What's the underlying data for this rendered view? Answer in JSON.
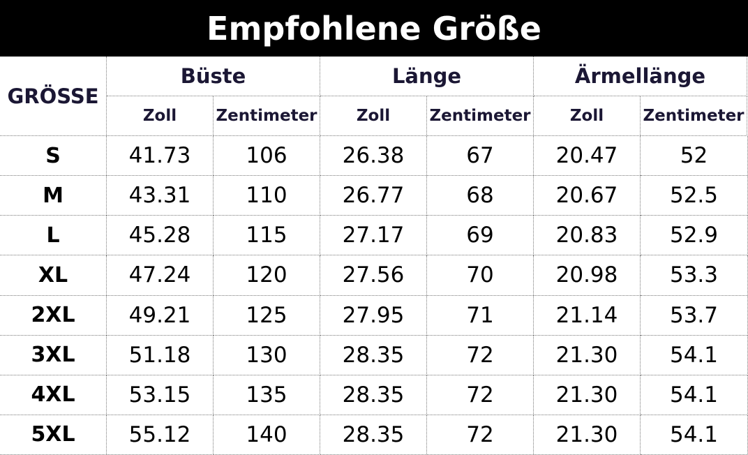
{
  "header": {
    "title": "Empfohlene Größe"
  },
  "table": {
    "corner": "GRÖSSE",
    "groups": [
      "Büste",
      "Länge",
      "Ärmellänge"
    ],
    "units": [
      "Zoll",
      "Zentimeter",
      "Zoll",
      "Zentimeter",
      "Zoll",
      "Zentimeter"
    ],
    "rows": [
      [
        "S",
        "41.73",
        "106",
        "26.38",
        "67",
        "20.47",
        "52"
      ],
      [
        "M",
        "43.31",
        "110",
        "26.77",
        "68",
        "20.67",
        "52.5"
      ],
      [
        "L",
        "45.28",
        "115",
        "27.17",
        "69",
        "20.83",
        "52.9"
      ],
      [
        "XL",
        "47.24",
        "120",
        "27.56",
        "70",
        "20.98",
        "53.3"
      ],
      [
        "2XL",
        "49.21",
        "125",
        "27.95",
        "71",
        "21.14",
        "53.7"
      ],
      [
        "3XL",
        "51.18",
        "130",
        "28.35",
        "72",
        "21.30",
        "54.1"
      ],
      [
        "4XL",
        "53.15",
        "135",
        "28.35",
        "72",
        "21.30",
        "54.1"
      ],
      [
        "5XL",
        "55.12",
        "140",
        "28.35",
        "72",
        "21.30",
        "54.1"
      ]
    ]
  }
}
